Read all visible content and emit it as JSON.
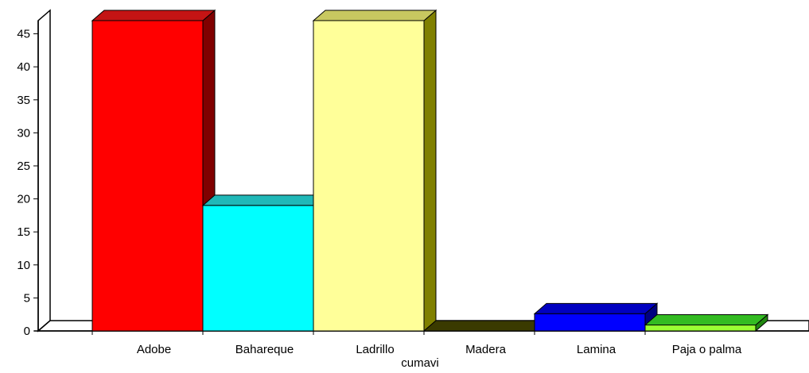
{
  "chart_data": {
    "type": "bar",
    "categories": [
      "Adobe",
      "Bahareque",
      "Ladrillo",
      "Madera",
      "Lamina",
      "Paja o palma"
    ],
    "values": [
      47,
      19,
      47,
      0,
      2.6,
      0.9
    ],
    "xlabel": "cumavi",
    "ylabel": "",
    "ylim": [
      0,
      47
    ],
    "yticks": [
      0,
      5,
      10,
      15,
      20,
      25,
      30,
      35,
      40,
      45
    ],
    "grid": false,
    "legend": "none",
    "style": "3d",
    "colors": [
      {
        "front": "#ff0000",
        "top": "#c41414",
        "side": "#800000"
      },
      {
        "front": "#00ffff",
        "top": "#20b8b8",
        "side": "#008080"
      },
      {
        "front": "#ffff99",
        "top": "#c8c860",
        "side": "#808000"
      },
      {
        "front": "#4d4d00",
        "top": "#3a3a00",
        "side": "#2e2e00"
      },
      {
        "front": "#0000ff",
        "top": "#0000c0",
        "side": "#000080"
      },
      {
        "front": "#99ff33",
        "top": "#33bb22",
        "side": "#228811"
      }
    ]
  }
}
